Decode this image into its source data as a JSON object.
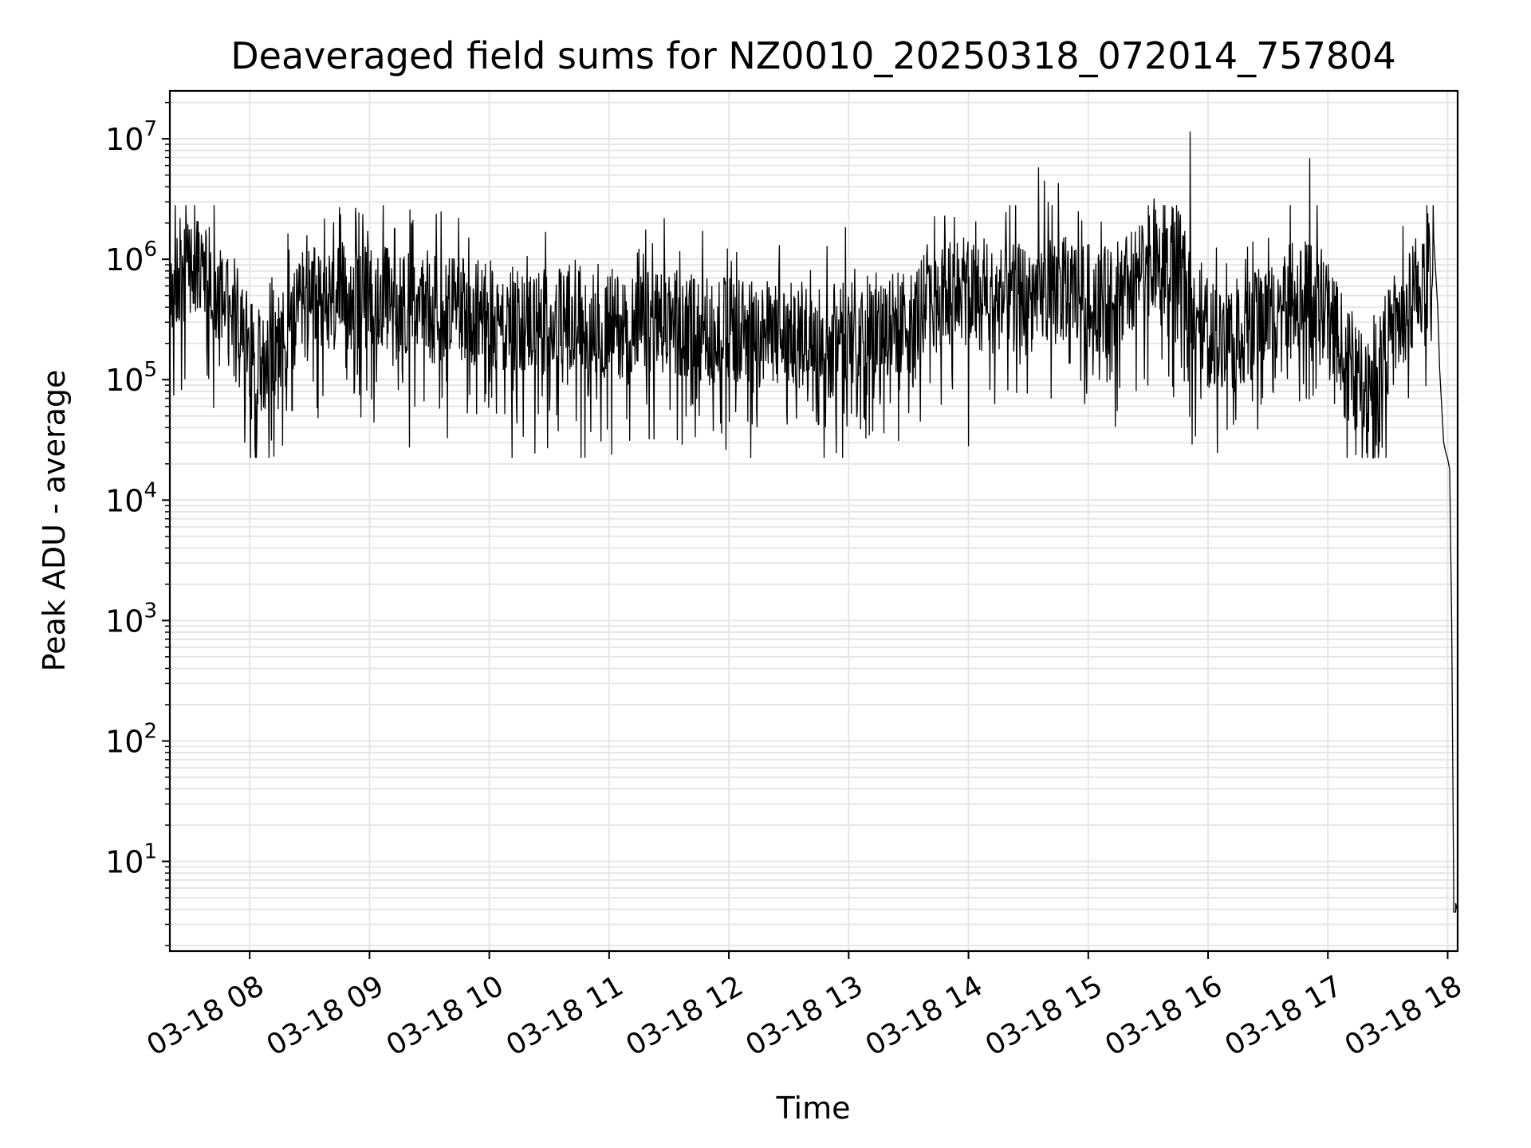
{
  "chart_data": {
    "type": "line",
    "title": "Deaveraged field sums for NZ0010_20250318_072014_757804",
    "xlabel": "Time",
    "ylabel": "Peak ADU - average",
    "yscale": "log",
    "ylim": [
      1.8,
      25000000
    ],
    "xlim": [
      "03-18 07:20",
      "03-18 18:05"
    ],
    "grid": true,
    "line_color": "#000000",
    "grid_color": "#e6e6e6",
    "x_ticks": [
      {
        "t": "03-18 08:00",
        "label": "03-18 08"
      },
      {
        "t": "03-18 09:00",
        "label": "03-18 09"
      },
      {
        "t": "03-18 10:00",
        "label": "03-18 10"
      },
      {
        "t": "03-18 11:00",
        "label": "03-18 11"
      },
      {
        "t": "03-18 12:00",
        "label": "03-18 12"
      },
      {
        "t": "03-18 13:00",
        "label": "03-18 13"
      },
      {
        "t": "03-18 14:00",
        "label": "03-18 14"
      },
      {
        "t": "03-18 15:00",
        "label": "03-18 15"
      },
      {
        "t": "03-18 16:00",
        "label": "03-18 16"
      },
      {
        "t": "03-18 17:00",
        "label": "03-18 17"
      },
      {
        "t": "03-18 18:00",
        "label": "03-18 18"
      }
    ],
    "y_ticks": [
      {
        "value": 10,
        "base": "10",
        "exp": "1"
      },
      {
        "value": 100,
        "base": "10",
        "exp": "2"
      },
      {
        "value": 1000,
        "base": "10",
        "exp": "3"
      },
      {
        "value": 10000,
        "base": "10",
        "exp": "4"
      },
      {
        "value": 100000,
        "base": "10",
        "exp": "5"
      },
      {
        "value": 1000000,
        "base": "10",
        "exp": "6"
      },
      {
        "value": 10000000,
        "base": "10",
        "exp": "7"
      }
    ],
    "series": [
      {
        "anchors": [
          [
            "03-18 07:20",
            550000
          ],
          [
            "03-18 07:30",
            800000
          ],
          [
            "03-18 07:40",
            700000
          ],
          [
            "03-18 07:50",
            450000
          ],
          [
            "03-18 08:00",
            200000
          ],
          [
            "03-18 08:10",
            150000
          ],
          [
            "03-18 08:20",
            250000
          ],
          [
            "03-18 08:30",
            450000
          ],
          [
            "03-18 09:00",
            500000
          ],
          [
            "03-18 09:30",
            420000
          ],
          [
            "03-18 10:00",
            350000
          ],
          [
            "03-18 10:30",
            300000
          ],
          [
            "03-18 11:00",
            280000
          ],
          [
            "03-18 11:30",
            300000
          ],
          [
            "03-18 12:00",
            250000
          ],
          [
            "03-18 12:30",
            230000
          ],
          [
            "03-18 13:00",
            260000
          ],
          [
            "03-18 13:30",
            300000
          ],
          [
            "03-18 13:50",
            600000
          ],
          [
            "03-18 14:10",
            450000
          ],
          [
            "03-18 14:30",
            500000
          ],
          [
            "03-18 14:50",
            550000
          ],
          [
            "03-18 15:10",
            450000
          ],
          [
            "03-18 15:30",
            800000
          ],
          [
            "03-18 15:40",
            1300000
          ],
          [
            "03-18 15:50",
            600000
          ],
          [
            "03-18 16:00",
            250000
          ],
          [
            "03-18 16:20",
            250000
          ],
          [
            "03-18 16:40",
            500000
          ],
          [
            "03-18 16:55",
            500000
          ],
          [
            "03-18 17:10",
            150000
          ],
          [
            "03-18 17:20",
            100000
          ],
          [
            "03-18 17:40",
            400000
          ],
          [
            "03-18 17:50",
            700000
          ],
          [
            "03-18 17:53",
            1500000
          ]
        ],
        "tail": [
          [
            "03-18 17:53",
            1500000
          ],
          [
            "03-18 17:55",
            400000
          ],
          [
            "03-18 17:56",
            120000
          ],
          [
            "03-18 17:57",
            60000
          ],
          [
            "03-18 17:58",
            30000
          ],
          [
            "03-18 17:59",
            25000
          ],
          [
            "03-18 18:00",
            22000
          ],
          [
            "03-18 18:01",
            18000
          ],
          [
            "03-18 18:02",
            1000
          ],
          [
            "03-18 18:03",
            6
          ],
          [
            "03-18 18:03",
            3.8
          ],
          [
            "03-18 18:04",
            3.8
          ],
          [
            "03-18 18:04",
            4.5
          ],
          [
            "03-18 18:05",
            3.8
          ]
        ],
        "spikes": [
          [
            "03-18 07:25",
            2200000
          ],
          [
            "03-18 08:45",
            2700000
          ],
          [
            "03-18 08:12",
            23000
          ],
          [
            "03-18 13:48",
            2300000
          ],
          [
            "03-18 14:00",
            28000
          ],
          [
            "03-18 14:35",
            5800000
          ],
          [
            "03-18 14:38",
            4500000
          ],
          [
            "03-18 14:40",
            3000000
          ],
          [
            "03-18 14:45",
            4300000
          ],
          [
            "03-18 14:55",
            2500000
          ],
          [
            "03-18 15:30",
            2800000
          ],
          [
            "03-18 15:33",
            3200000
          ],
          [
            "03-18 15:51",
            11500000
          ],
          [
            "03-18 15:52",
            29000
          ],
          [
            "03-18 16:51",
            6900000
          ],
          [
            "03-18 17:50",
            2400000
          ],
          [
            "03-18 13:25",
            31000
          ],
          [
            "03-18 11:20",
            32000
          ]
        ]
      }
    ]
  }
}
